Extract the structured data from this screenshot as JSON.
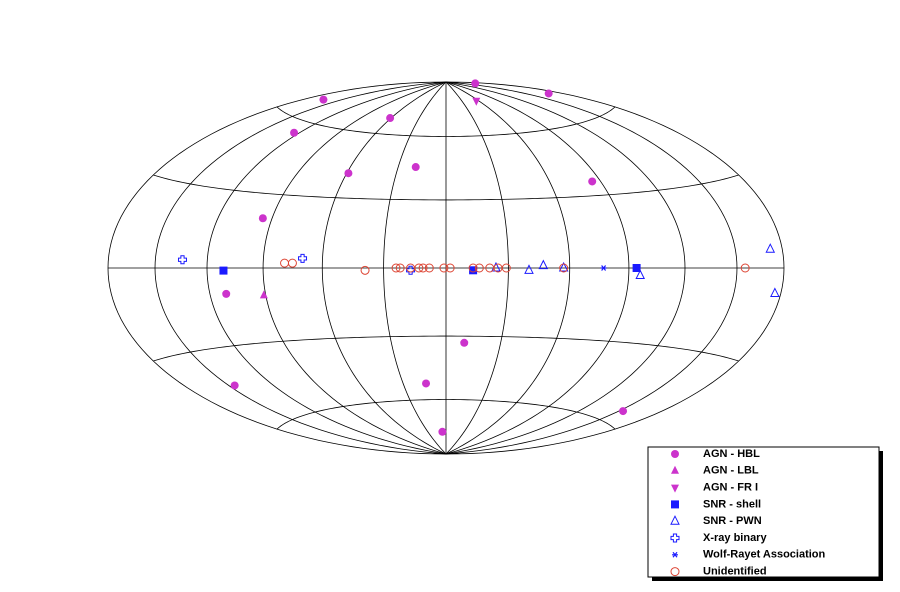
{
  "chart_data": {
    "type": "scatter",
    "projection": "hammer",
    "xreverse": true,
    "xlim": [
      -180,
      180
    ],
    "ylim": [
      -90,
      90
    ],
    "xticks": [
      -150,
      -120,
      -90,
      -60,
      -30,
      0,
      30,
      60,
      90,
      120,
      150
    ],
    "yticks": [
      -60,
      -30,
      0,
      30,
      60
    ],
    "grid": true,
    "legend": "lower right",
    "series": [
      {
        "name": "AGN - HBL",
        "color": "#cc33cc",
        "marker": "circle",
        "x": [
          -170,
          -170,
          165,
          61,
          124,
          19,
          59,
          -85,
          95,
          111,
          -10,
          146,
          14,
          -153,
          6
        ],
        "y": [
          85,
          72,
          68,
          68,
          55,
          45,
          41,
          36,
          20,
          -10,
          -33,
          -44,
          -52,
          -55,
          -77
        ]
      },
      {
        "name": "AGN - LBL",
        "color": "#cc33cc",
        "marker": "triangle-up",
        "x": [
          91
        ],
        "y": [
          -11
        ]
      },
      {
        "name": "AGN - FR I",
        "color": "#cc33cc",
        "marker": "triangle-down",
        "x": [
          -56
        ],
        "y": [
          78
        ]
      },
      {
        "name": "SNR - shell",
        "color": "#1a1aff",
        "marker": "square",
        "x": [
          111,
          -13,
          -94
        ],
        "y": [
          -1,
          -1,
          0
        ]
      },
      {
        "name": "SNR - PWN",
        "color": "#1a1aff",
        "marker": "triangle-open",
        "x": [
          -24,
          -40,
          -47,
          -57,
          -96,
          -172,
          -176
        ],
        "y": [
          0,
          -1,
          1,
          0,
          -3,
          6,
          -8
        ]
      },
      {
        "name": "X-ray binary",
        "color": "#1a1aff",
        "marker": "cross-open",
        "x": [
          134,
          70,
          17
        ],
        "y": [
          3,
          4,
          -1
        ]
      },
      {
        "name": "Wolf-Rayet Association",
        "color": "#1a1aff",
        "marker": "star",
        "x": [
          -77
        ],
        "y": [
          0
        ]
      },
      {
        "name": "Unidentified",
        "color": "#dd4433",
        "marker": "circle-open",
        "x": [
          39,
          79,
          75,
          24,
          22,
          17,
          13,
          11,
          8,
          1,
          -2,
          -13,
          -16,
          -21,
          -25,
          -29,
          -57,
          -155
        ],
        "y": [
          -1,
          2,
          2,
          0,
          0,
          0,
          0,
          0,
          0,
          0,
          0,
          0,
          0,
          0,
          0,
          0,
          0,
          0
        ]
      }
    ]
  }
}
